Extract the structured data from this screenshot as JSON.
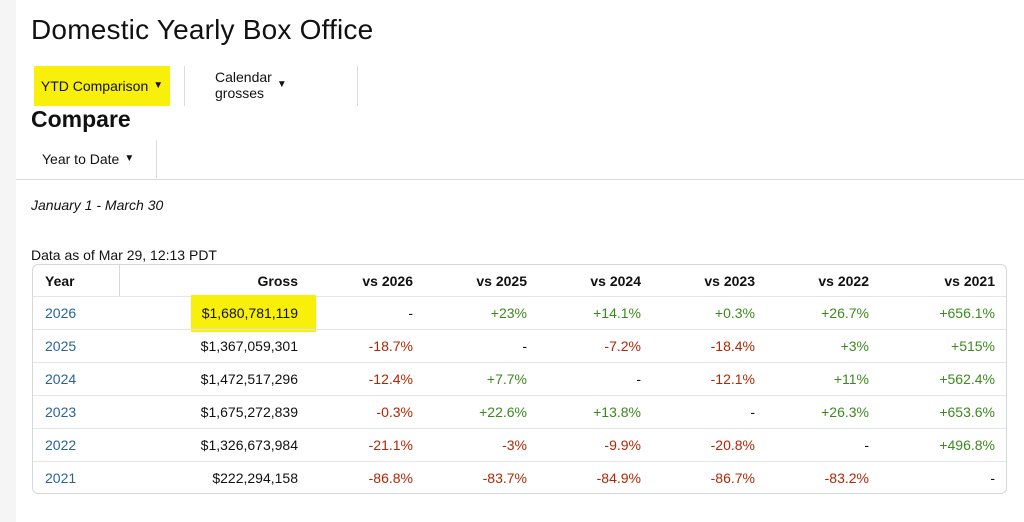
{
  "page": {
    "title": "Domestic Yearly Box Office"
  },
  "mode": {
    "ytd_label": "YTD Comparison",
    "calendar_label": "Calendar grosses"
  },
  "compare": {
    "heading": "Compare",
    "period_label": "Year to Date"
  },
  "range_text": "January 1 - March 30",
  "as_of_text": "Data as of Mar 29, 12:13 PDT",
  "colors": {
    "highlight": "#f8f00a",
    "positive": "#3c8a1e",
    "negative": "#b12704",
    "link": "#2a6496"
  },
  "table": {
    "headers": [
      "Year",
      "Gross",
      "vs 2026",
      "vs 2025",
      "vs 2024",
      "vs 2023",
      "vs 2022",
      "vs 2021"
    ],
    "rows": [
      {
        "year": "2026",
        "gross": "$1,680,781,119",
        "vs": [
          "-",
          "+23%",
          "+14.1%",
          "+0.3%",
          "+26.7%",
          "+656.1%"
        ]
      },
      {
        "year": "2025",
        "gross": "$1,367,059,301",
        "vs": [
          "-18.7%",
          "-",
          "-7.2%",
          "-18.4%",
          "+3%",
          "+515%"
        ]
      },
      {
        "year": "2024",
        "gross": "$1,472,517,296",
        "vs": [
          "-12.4%",
          "+7.7%",
          "-",
          "-12.1%",
          "+11%",
          "+562.4%"
        ]
      },
      {
        "year": "2023",
        "gross": "$1,675,272,839",
        "vs": [
          "-0.3%",
          "+22.6%",
          "+13.8%",
          "-",
          "+26.3%",
          "+653.6%"
        ]
      },
      {
        "year": "2022",
        "gross": "$1,326,673,984",
        "vs": [
          "-21.1%",
          "-3%",
          "-9.9%",
          "-20.8%",
          "-",
          "+496.8%"
        ]
      },
      {
        "year": "2021",
        "gross": "$222,294,158",
        "vs": [
          "-86.8%",
          "-83.7%",
          "-84.9%",
          "-86.7%",
          "-83.2%",
          "-"
        ]
      }
    ]
  }
}
